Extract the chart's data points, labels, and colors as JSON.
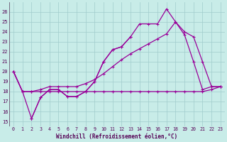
{
  "bg_color": "#c8ece8",
  "line_color": "#990099",
  "grid_color": "#a0cccc",
  "xlabel": "Windchill (Refroidissement éolien,°C)",
  "xlim": [
    -0.5,
    23.5
  ],
  "ylim": [
    14.5,
    27.0
  ],
  "yticks": [
    15,
    16,
    17,
    18,
    19,
    20,
    21,
    22,
    23,
    24,
    25,
    26
  ],
  "xticks": [
    0,
    1,
    2,
    3,
    4,
    5,
    6,
    7,
    8,
    9,
    10,
    11,
    12,
    13,
    14,
    15,
    16,
    17,
    18,
    19,
    20,
    21,
    22,
    23
  ],
  "serA_x": [
    0,
    1,
    2,
    3,
    4,
    5,
    6,
    7,
    8,
    9,
    10,
    11,
    12,
    13
  ],
  "serA_y": [
    20.0,
    18.0,
    15.3,
    17.4,
    18.2,
    18.2,
    17.5,
    17.5,
    18.0,
    19.0,
    21.0,
    22.2,
    22.5,
    23.5
  ],
  "serB_x": [
    0,
    1,
    2,
    3,
    4,
    5,
    6,
    7,
    8,
    9,
    10,
    11,
    12,
    13,
    14,
    15,
    16,
    17,
    18,
    19,
    20,
    21,
    22,
    23
  ],
  "serB_y": [
    20.0,
    18.0,
    18.0,
    18.0,
    18.0,
    18.0,
    18.0,
    18.0,
    18.0,
    18.0,
    18.0,
    18.0,
    18.0,
    18.0,
    18.0,
    18.0,
    18.0,
    18.0,
    18.0,
    18.0,
    18.0,
    18.0,
    18.2,
    18.5
  ],
  "serC_x": [
    2,
    3,
    4,
    5,
    6,
    7,
    8,
    9,
    10,
    11,
    12,
    13,
    14,
    15,
    16,
    17,
    18,
    19,
    20,
    21,
    22,
    23
  ],
  "serC_y": [
    15.3,
    17.4,
    18.2,
    18.2,
    17.5,
    17.5,
    18.0,
    19.0,
    21.0,
    22.2,
    22.5,
    23.5,
    24.8,
    24.8,
    24.8,
    26.3,
    25.0,
    23.7,
    21.0,
    18.2,
    18.5,
    18.5
  ],
  "serD_x": [
    0,
    1,
    2,
    3,
    4,
    5,
    6,
    7,
    8,
    9,
    10,
    11,
    12,
    13,
    14,
    15,
    16,
    17,
    18,
    19,
    20,
    21,
    22,
    23
  ],
  "serD_y": [
    20.0,
    18.0,
    18.0,
    18.2,
    18.5,
    18.5,
    18.5,
    18.5,
    18.8,
    19.2,
    19.8,
    20.5,
    21.2,
    21.8,
    22.3,
    22.8,
    23.3,
    23.8,
    25.0,
    24.0,
    23.5,
    21.0,
    18.5,
    18.5
  ]
}
